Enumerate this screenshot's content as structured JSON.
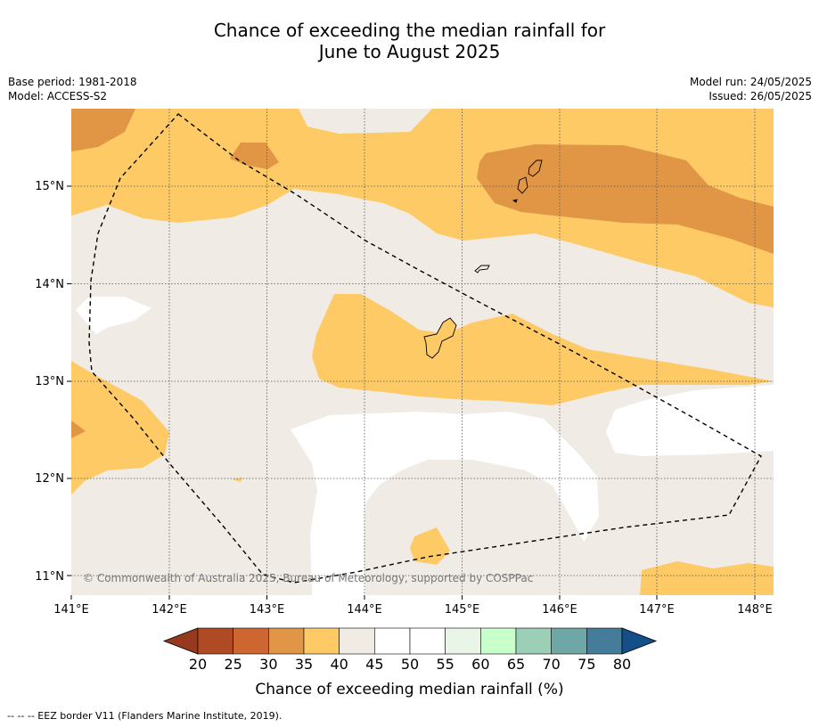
{
  "title_line1": "Chance of exceeding the median rainfall for",
  "title_line2": "June to August 2025",
  "meta": {
    "base_period": "Base period: 1981-2018",
    "model": "Model: ACCESS-S2",
    "model_run": "Model run: 24/05/2025",
    "issued": "Issued: 26/05/2025"
  },
  "lat_labels": [
    "15°N",
    "14°N",
    "13°N",
    "12°N",
    "11°N"
  ],
  "lon_labels": [
    "141°E",
    "142°E",
    "143°E",
    "144°E",
    "145°E",
    "146°E",
    "147°E",
    "148°E"
  ],
  "copyright": "© Commonwealth of Australia 2025, Bureau of Meteorology, supported by COSPPac",
  "colorbar": {
    "ticks": [
      "20",
      "25",
      "30",
      "35",
      "40",
      "45",
      "50",
      "55",
      "60",
      "65",
      "70",
      "75",
      "80"
    ],
    "colors": [
      "#b04a25",
      "#cd6630",
      "#e19645",
      "#fdca65",
      "#f0ebe5",
      "#ffffff",
      "#ffffff",
      "#eaf5e8",
      "#c9ffcb",
      "#9ccfb8",
      "#6fa6a6",
      "#447c9a"
    ],
    "under_color": "#96391e",
    "over_color": "#154f8a",
    "label": "Chance of exceeding median rainfall (%)"
  },
  "footnote": "--  --  -- EEZ border V11 (Flanders Marine Institute, 2019)."
}
